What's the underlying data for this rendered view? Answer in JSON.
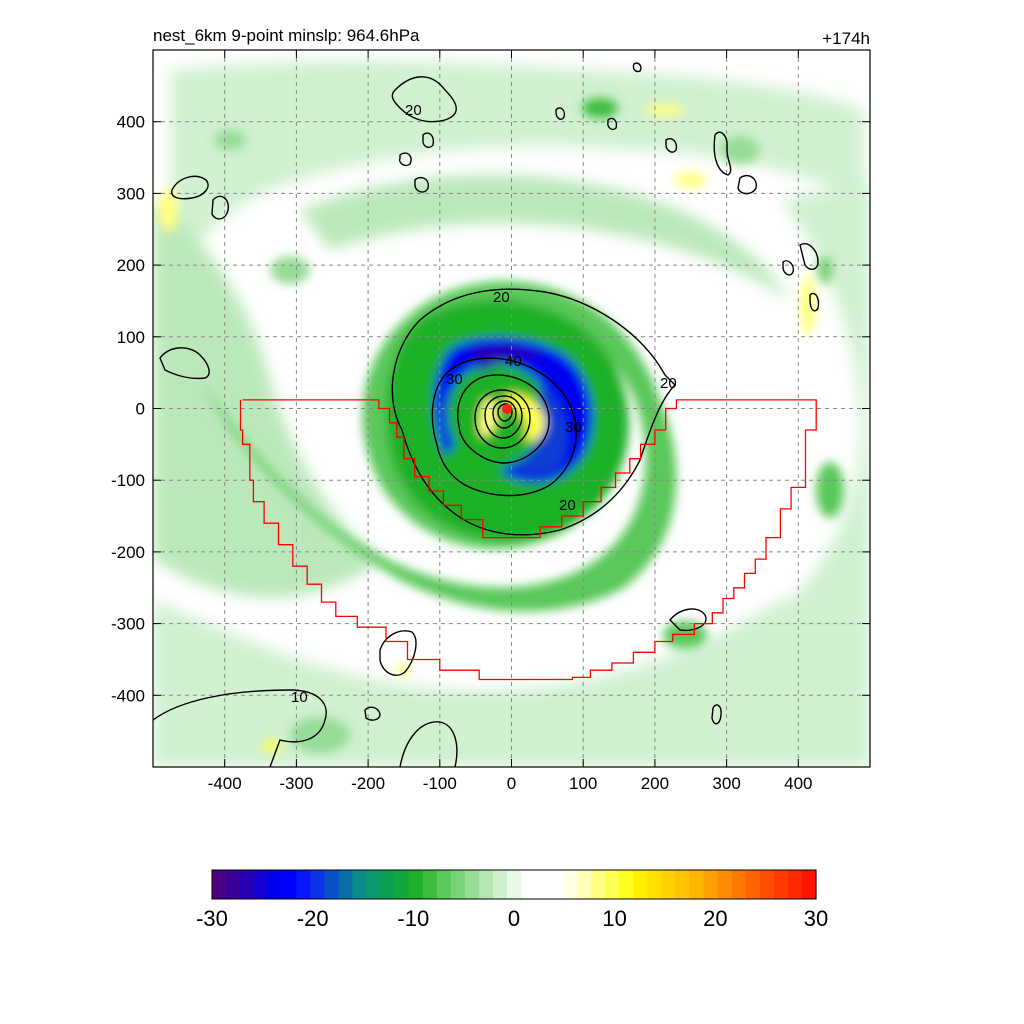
{
  "title_left": "nest_6km  9-point minslp: 964.6hPa",
  "title_right": "+174h",
  "chart_data": {
    "type": "heatmap",
    "title": "nest_6km  9-point minslp: 964.6hPa",
    "subtitle": "+174h",
    "xlabel": "",
    "ylabel": "",
    "xlim": [
      -500,
      500
    ],
    "ylim": [
      -500,
      500
    ],
    "x_ticks": [
      -400,
      -300,
      -200,
      -100,
      0,
      100,
      200,
      300,
      400
    ],
    "y_ticks": [
      -400,
      -300,
      -200,
      -100,
      0,
      100,
      200,
      300,
      400
    ],
    "grid": true,
    "colorbar": {
      "min": -30,
      "max": 30,
      "ticks": [
        -30,
        -20,
        -10,
        0,
        10,
        20,
        30
      ],
      "colors": [
        "#4b0082",
        "#3a0096",
        "#2800b4",
        "#1400d2",
        "#0000f0",
        "#0000ff",
        "#0a14ff",
        "#0a32e6",
        "#0a50c8",
        "#0a6eaa",
        "#0a8c8c",
        "#0a9a6e",
        "#0aa050",
        "#14a83c",
        "#1eb028",
        "#3cbc3c",
        "#5ac85a",
        "#78d278",
        "#96dc96",
        "#b4e6b4",
        "#cdf0cd",
        "#e6f8e6",
        "#ffffff",
        "#ffffff",
        "#ffffff",
        "#ffffe6",
        "#ffffb4",
        "#ffff82",
        "#ffff50",
        "#ffff1e",
        "#fff000",
        "#ffe100",
        "#ffd200",
        "#ffc300",
        "#ffb400",
        "#ffa000",
        "#ff8c00",
        "#ff7800",
        "#ff6400",
        "#ff5000",
        "#ff3c00",
        "#ff2800",
        "#ff1400"
      ]
    },
    "contour_levels": [
      10,
      20,
      30,
      40
    ],
    "contour_labels": [
      "20",
      "20",
      "20",
      "20",
      "30",
      "30",
      "40",
      "10"
    ],
    "center": [
      -5,
      0
    ]
  }
}
